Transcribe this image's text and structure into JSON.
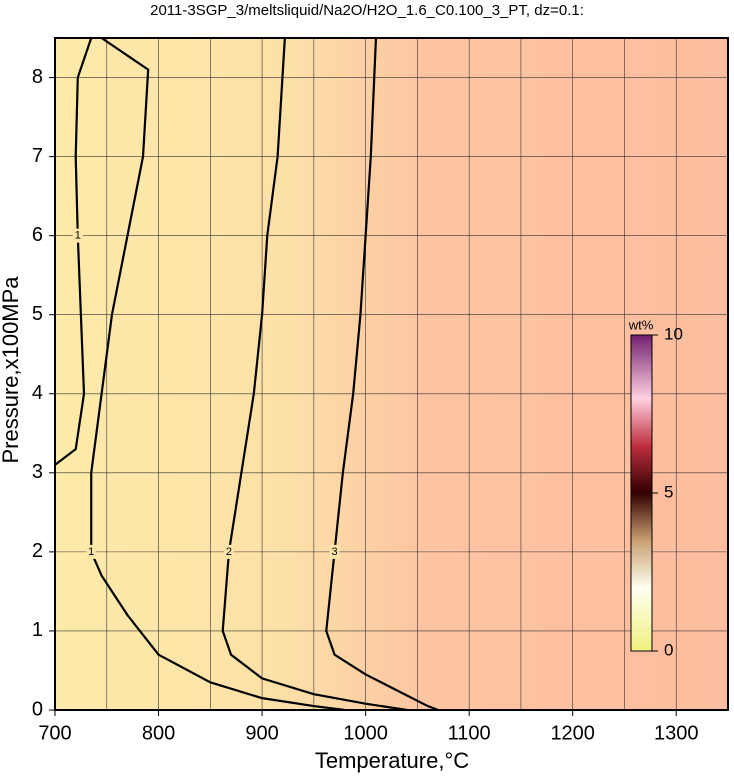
{
  "chart_data": {
    "type": "contour",
    "title": "2011-3SGP_3/meltsliquid/Na2O/H2O_1.6_C0.100_3_PT, dz=0.1:",
    "x_label": "Temperature,°C",
    "y_label": "Pressure,x100MPa",
    "xlim": [
      700,
      1350
    ],
    "ylim": [
      0,
      8.5
    ],
    "xticks": [
      700,
      800,
      900,
      1000,
      1100,
      1200,
      1300
    ],
    "x_minor_ticks": [
      750,
      850,
      950,
      1050,
      1150,
      1250
    ],
    "yticks": [
      0,
      1,
      2,
      3,
      4,
      5,
      6,
      7,
      8
    ],
    "grid": true,
    "contours": [
      {
        "level": 1,
        "x": [
          700,
          720,
          728,
          725,
          722,
          720,
          722,
          735
        ],
        "y": [
          3.1,
          3.3,
          4,
          5,
          6,
          7,
          8,
          8.5
        ]
      },
      {
        "level": 1,
        "x": [
          745,
          790,
          785,
          770,
          755,
          745,
          735,
          735,
          745,
          770,
          800,
          850,
          900,
          950,
          980
        ],
        "y": [
          8.5,
          8.1,
          7,
          6,
          5,
          4,
          3,
          2,
          1.7,
          1.2,
          0.7,
          0.35,
          0.15,
          0.05,
          0
        ]
      },
      {
        "level": 2,
        "x": [
          922,
          915,
          905,
          900,
          892,
          880,
          868,
          862,
          870,
          900,
          950,
          1000,
          1040
        ],
        "y": [
          8.5,
          7,
          6,
          5,
          4,
          3,
          2,
          1,
          0.7,
          0.4,
          0.2,
          0.08,
          0
        ]
      },
      {
        "level": 3,
        "x": [
          1010,
          1005,
          1000,
          995,
          988,
          978,
          970,
          962,
          970,
          1000,
          1030,
          1060,
          1070
        ],
        "y": [
          8.5,
          7,
          6,
          5,
          4,
          3,
          2,
          1,
          0.7,
          0.45,
          0.25,
          0.05,
          0
        ]
      }
    ],
    "colorbar": {
      "label": "wt%",
      "lim": [
        0,
        10
      ],
      "ticks": [
        0,
        5,
        10
      ]
    }
  }
}
